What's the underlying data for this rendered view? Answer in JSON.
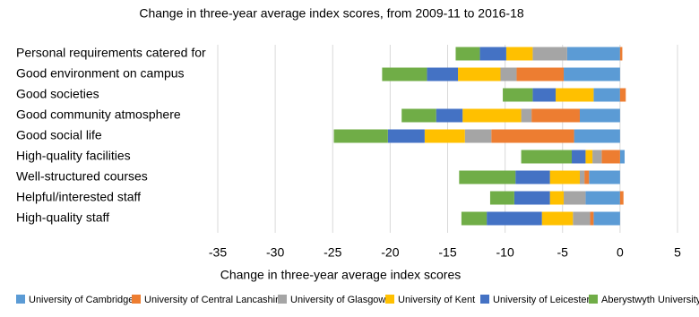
{
  "chart_data": {
    "type": "diverging-stacked-bar",
    "title": "Change in three-year average index scores, from 2009-11 to 2016-18",
    "x_label": "Change  in three-year average index scores",
    "categories": [
      "Personal requirements catered for",
      "Good environment on campus",
      "Good societies",
      "Good community atmosphere",
      "Good social life",
      "High-quality facilities",
      "Well-structured courses",
      "Helpful/interested staff",
      "High-quality staff"
    ],
    "series": [
      {
        "name": "University of Cambridge",
        "color": "#5b9bd5",
        "values": [
          -4.6,
          -4.9,
          -2.3,
          -3.5,
          -4.0,
          0.4,
          -2.7,
          -3.0,
          -2.3
        ]
      },
      {
        "name": "University of Central Lancashire",
        "color": "#ed7d31",
        "values": [
          0.2,
          -4.1,
          0.5,
          -4.2,
          -7.2,
          -1.6,
          -0.4,
          0.3,
          -0.3
        ]
      },
      {
        "name": "University of Glasgow",
        "color": "#a5a5a5",
        "values": [
          -3.0,
          -1.4,
          0,
          -0.9,
          -2.3,
          -0.8,
          -0.4,
          -1.9,
          -1.5
        ]
      },
      {
        "name": "University of Kent",
        "color": "#ffc000",
        "values": [
          -2.3,
          -3.7,
          -3.3,
          -5.1,
          -3.5,
          -0.6,
          -2.6,
          -1.2,
          -2.7
        ]
      },
      {
        "name": "University of Leicester",
        "color": "#4472c4",
        "values": [
          -2.3,
          -2.7,
          -2.0,
          -2.3,
          -3.2,
          -1.2,
          -3.0,
          -3.1,
          -4.8
        ]
      },
      {
        "name": "Aberystwyth University",
        "color": "#70ad47",
        "values": [
          -2.1,
          -3.9,
          -2.6,
          -3.0,
          -4.7,
          -4.4,
          -4.9,
          -2.1,
          -2.2
        ]
      }
    ],
    "xlim": [
      -35,
      5
    ],
    "xticks": [
      -35,
      -30,
      -25,
      -20,
      -15,
      -10,
      -5,
      0,
      5
    ],
    "grid": true
  }
}
